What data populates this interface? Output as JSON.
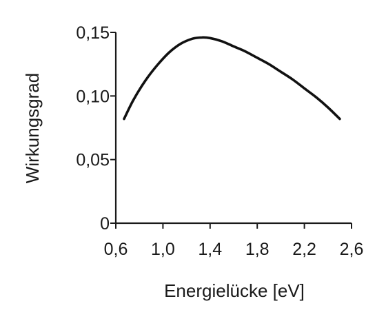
{
  "chart_data": {
    "type": "line",
    "title": "",
    "xlabel": "Energielücke [eV]",
    "ylabel": "Wirkungsgrad",
    "xlim": [
      0.6,
      2.6
    ],
    "ylim": [
      0,
      0.15
    ],
    "x_ticks": [
      0.6,
      1.0,
      1.4,
      1.8,
      2.2,
      2.6
    ],
    "x_tick_labels": [
      "0,6",
      "1,0",
      "1,4",
      "1,8",
      "2,2",
      "2,6"
    ],
    "y_ticks": [
      0,
      0.05,
      0.1,
      0.15
    ],
    "y_tick_labels": [
      "0",
      "0,05",
      "0,10",
      "0,15"
    ],
    "grid": false,
    "legend": "none",
    "series": [
      {
        "color": "#111111",
        "x": [
          0.67,
          0.75,
          0.85,
          0.95,
          1.05,
          1.15,
          1.25,
          1.33,
          1.4,
          1.5,
          1.6,
          1.7,
          1.8,
          1.9,
          2.0,
          2.1,
          2.2,
          2.3,
          2.4,
          2.5
        ],
        "y": [
          0.082,
          0.097,
          0.112,
          0.124,
          0.134,
          0.141,
          0.145,
          0.146,
          0.1455,
          0.143,
          0.139,
          0.135,
          0.13,
          0.125,
          0.119,
          0.113,
          0.106,
          0.099,
          0.091,
          0.082
        ]
      }
    ]
  }
}
